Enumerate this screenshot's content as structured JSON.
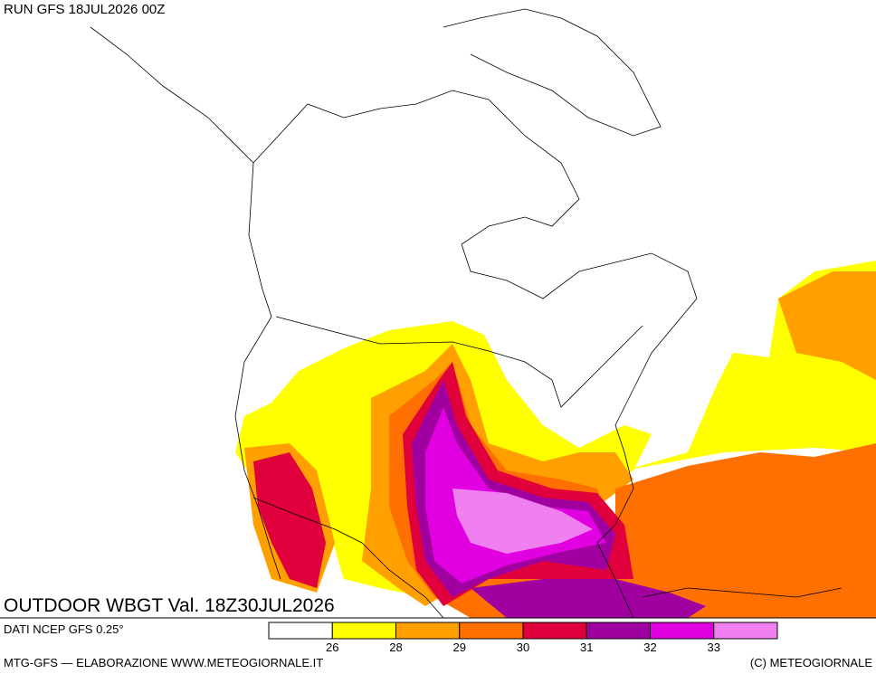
{
  "header": {
    "run": "RUN GFS 18JUL2026 00Z"
  },
  "map": {
    "title": "OUTDOOR WBGT Val. 18Z30JUL2026"
  },
  "footer": {
    "source": "DATI NCEP GFS 0.25°",
    "credit": "MTG-GFS — ELABORAZIONE WWW.METEOGIORNALE.IT",
    "copyright": "(C) METEOGIORNALE"
  },
  "legend": {
    "colors": [
      "#ffffff",
      "#ffff00",
      "#ffa000",
      "#ff7000",
      "#e0003c",
      "#a000a0",
      "#e000e0",
      "#f080f0"
    ],
    "thresholds": [
      26,
      28,
      29,
      30,
      31,
      32,
      33
    ]
  }
}
